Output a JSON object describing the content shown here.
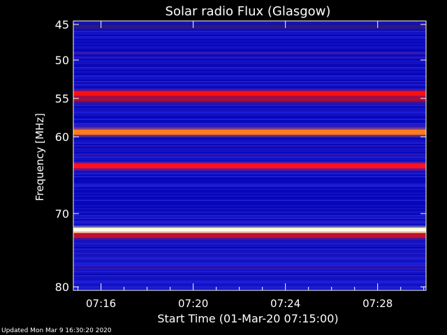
{
  "chart_data": {
    "type": "heatmap",
    "title": "Solar radio Flux (Glasgow)",
    "xlabel": "Start Time (01-Mar-20 07:15:00)",
    "ylabel": "Frequency [MHz]",
    "x_ticks": [
      "07:16",
      "07:20",
      "07:24",
      "07:28"
    ],
    "x_tick_minutes": [
      1,
      5,
      9,
      13
    ],
    "xlim_minutes": [
      -0.2,
      15.1
    ],
    "y_ticks": [
      45,
      50,
      55,
      60,
      70,
      80
    ],
    "ylim": [
      45,
      80
    ],
    "y_axis_inverted": true,
    "background_color": "#1a1acc",
    "emission_bands": [
      {
        "mhz": 45.3,
        "color": "#2a1a80",
        "level": 0.3
      },
      {
        "mhz": 54.4,
        "color": "#ff1010",
        "level": 0.85
      },
      {
        "mhz": 55.1,
        "color": "#a01040",
        "level": 0.6
      },
      {
        "mhz": 59.4,
        "color": "#ff7a20",
        "level": 0.9
      },
      {
        "mhz": 63.8,
        "color": "#ff1020",
        "level": 0.8
      },
      {
        "mhz": 72.3,
        "color": "#ffffc0",
        "level": 1.0
      },
      {
        "mhz": 73.0,
        "color": "#c01030",
        "level": 0.7
      }
    ],
    "colors": {
      "low": "#0000c8",
      "mid": "#a01040",
      "high": "#ff2010",
      "peak": "#ffffc0"
    }
  },
  "footer": "Updated Mon Mar  9 16:30:20 2020"
}
